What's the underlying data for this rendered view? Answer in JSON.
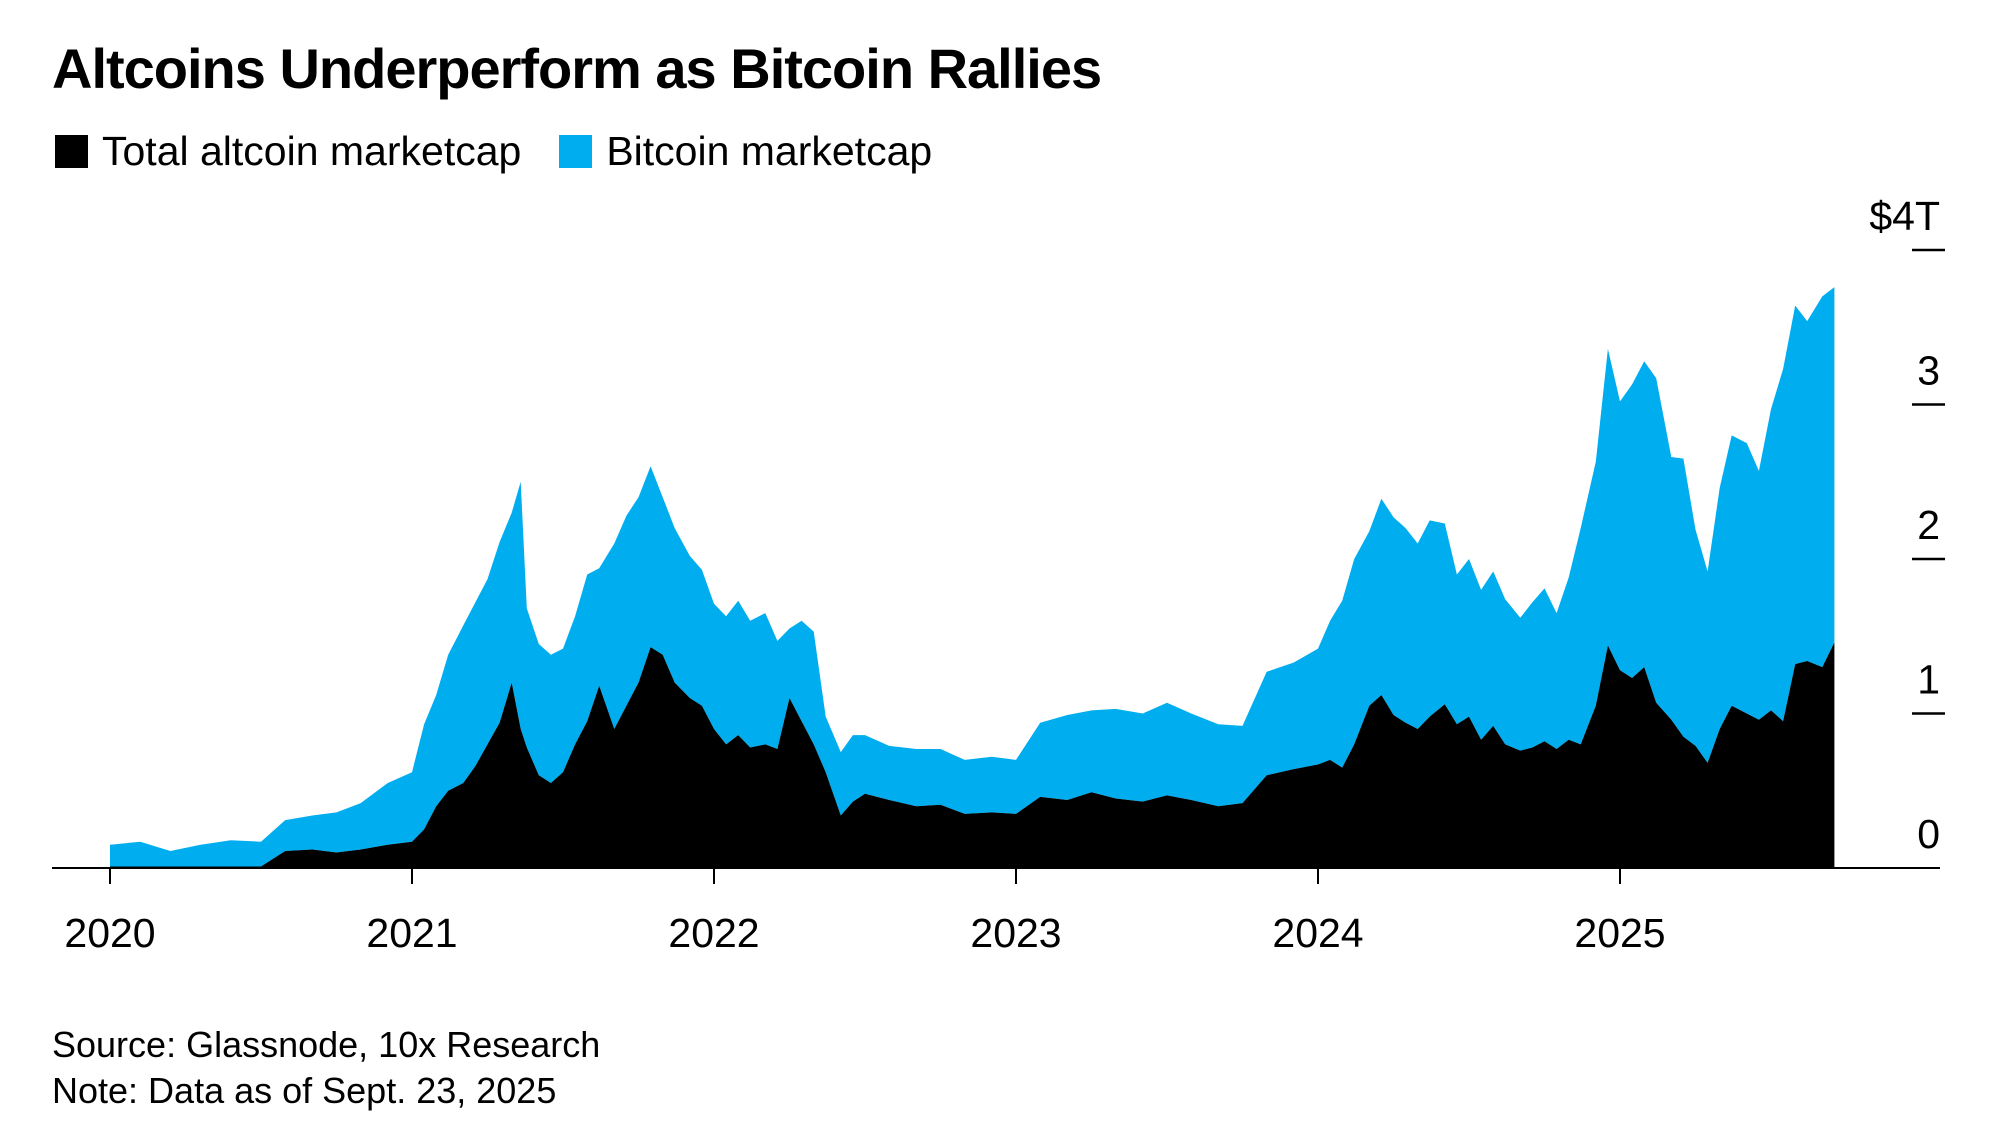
{
  "chart_data": {
    "type": "area",
    "title": "Altcoins Underperform as Bitcoin Rallies",
    "x_tick_labels": [
      "2020",
      "2021",
      "2022",
      "2023",
      "2024",
      "2025"
    ],
    "y_tick_labels": [
      "0",
      "1",
      "2",
      "3",
      "$4T"
    ],
    "y_ticks": [
      0,
      1,
      2,
      3,
      4
    ],
    "ylim": [
      0,
      4
    ],
    "xlim": [
      2019.95,
      2026.0
    ],
    "grid": false,
    "legend_position": "top-left",
    "stacked": true,
    "series": [
      {
        "name": "Total altcoin marketcap",
        "color": "#000000",
        "x": [
          2020.0,
          2020.1,
          2020.2,
          2020.3,
          2020.4,
          2020.5,
          2020.58,
          2020.67,
          2020.75,
          2020.83,
          2020.92,
          2021.0,
          2021.04,
          2021.08,
          2021.12,
          2021.17,
          2021.21,
          2021.25,
          2021.29,
          2021.33,
          2021.36,
          2021.38,
          2021.42,
          2021.46,
          2021.5,
          2021.54,
          2021.58,
          2021.62,
          2021.67,
          2021.71,
          2021.75,
          2021.79,
          2021.83,
          2021.87,
          2021.92,
          2021.96,
          2022.0,
          2022.04,
          2022.08,
          2022.12,
          2022.17,
          2022.21,
          2022.25,
          2022.29,
          2022.33,
          2022.37,
          2022.42,
          2022.46,
          2022.5,
          2022.58,
          2022.67,
          2022.75,
          2022.83,
          2022.92,
          2023.0,
          2023.08,
          2023.17,
          2023.25,
          2023.33,
          2023.42,
          2023.5,
          2023.58,
          2023.67,
          2023.75,
          2023.83,
          2023.92,
          2024.0,
          2024.04,
          2024.08,
          2024.12,
          2024.17,
          2024.21,
          2024.25,
          2024.29,
          2024.33,
          2024.37,
          2024.42,
          2024.46,
          2024.5,
          2024.54,
          2024.58,
          2024.62,
          2024.67,
          2024.71,
          2024.75,
          2024.79,
          2024.83,
          2024.87,
          2024.92,
          2024.96,
          2025.0,
          2025.04,
          2025.08,
          2025.12,
          2025.17,
          2025.21,
          2025.25,
          2025.29,
          2025.33,
          2025.37,
          2025.42,
          2025.46,
          2025.5,
          2025.54,
          2025.58,
          2025.62,
          2025.67,
          2025.71
        ],
        "values": [
          0.01,
          0.01,
          0.01,
          0.01,
          0.01,
          0.01,
          0.11,
          0.12,
          0.1,
          0.12,
          0.15,
          0.17,
          0.25,
          0.4,
          0.5,
          0.55,
          0.66,
          0.8,
          0.94,
          1.2,
          0.9,
          0.78,
          0.6,
          0.55,
          0.62,
          0.8,
          0.95,
          1.18,
          0.9,
          1.05,
          1.2,
          1.43,
          1.38,
          1.2,
          1.1,
          1.05,
          0.9,
          0.8,
          0.86,
          0.78,
          0.8,
          0.77,
          1.1,
          0.95,
          0.8,
          0.62,
          0.34,
          0.43,
          0.48,
          0.44,
          0.4,
          0.41,
          0.35,
          0.36,
          0.35,
          0.46,
          0.44,
          0.49,
          0.45,
          0.43,
          0.47,
          0.44,
          0.4,
          0.42,
          0.6,
          0.64,
          0.67,
          0.7,
          0.65,
          0.8,
          1.05,
          1.12,
          0.99,
          0.94,
          0.9,
          0.98,
          1.06,
          0.93,
          0.98,
          0.83,
          0.92,
          0.8,
          0.76,
          0.78,
          0.82,
          0.77,
          0.83,
          0.8,
          1.05,
          1.44,
          1.28,
          1.23,
          1.3,
          1.07,
          0.96,
          0.85,
          0.79,
          0.68,
          0.9,
          1.05,
          1.0,
          0.96,
          1.02,
          0.95,
          1.32,
          1.34,
          1.3,
          1.46
        ]
      },
      {
        "name": "Bitcoin marketcap",
        "color": "#00aeef",
        "x": [
          2020.0,
          2020.1,
          2020.2,
          2020.3,
          2020.4,
          2020.5,
          2020.58,
          2020.67,
          2020.75,
          2020.83,
          2020.92,
          2021.0,
          2021.04,
          2021.08,
          2021.12,
          2021.17,
          2021.21,
          2021.25,
          2021.29,
          2021.33,
          2021.36,
          2021.38,
          2021.42,
          2021.46,
          2021.5,
          2021.54,
          2021.58,
          2021.62,
          2021.67,
          2021.71,
          2021.75,
          2021.79,
          2021.83,
          2021.87,
          2021.92,
          2021.96,
          2022.0,
          2022.04,
          2022.08,
          2022.12,
          2022.17,
          2022.21,
          2022.25,
          2022.29,
          2022.33,
          2022.37,
          2022.42,
          2022.46,
          2022.5,
          2022.58,
          2022.67,
          2022.75,
          2022.83,
          2022.92,
          2023.0,
          2023.08,
          2023.17,
          2023.25,
          2023.33,
          2023.42,
          2023.5,
          2023.58,
          2023.67,
          2023.75,
          2023.83,
          2023.92,
          2024.0,
          2024.04,
          2024.08,
          2024.12,
          2024.17,
          2024.21,
          2024.25,
          2024.29,
          2024.33,
          2024.37,
          2024.42,
          2024.46,
          2024.5,
          2024.54,
          2024.58,
          2024.62,
          2024.67,
          2024.71,
          2024.75,
          2024.79,
          2024.83,
          2024.87,
          2024.92,
          2024.96,
          2025.0,
          2025.04,
          2025.08,
          2025.12,
          2025.17,
          2025.21,
          2025.25,
          2025.29,
          2025.33,
          2025.37,
          2025.42,
          2025.46,
          2025.5,
          2025.54,
          2025.58,
          2025.62,
          2025.67,
          2025.71
        ],
        "values": [
          0.14,
          0.16,
          0.1,
          0.14,
          0.17,
          0.16,
          0.2,
          0.22,
          0.26,
          0.3,
          0.4,
          0.45,
          0.68,
          0.72,
          0.88,
          1.02,
          1.06,
          1.07,
          1.17,
          1.1,
          1.6,
          0.9,
          0.85,
          0.83,
          0.8,
          0.83,
          0.95,
          0.76,
          1.2,
          1.23,
          1.2,
          1.17,
          1.02,
          1.0,
          0.92,
          0.88,
          0.81,
          0.83,
          0.87,
          0.82,
          0.85,
          0.7,
          0.45,
          0.65,
          0.73,
          0.36,
          0.41,
          0.43,
          0.38,
          0.35,
          0.37,
          0.36,
          0.35,
          0.36,
          0.35,
          0.48,
          0.55,
          0.53,
          0.58,
          0.57,
          0.6,
          0.56,
          0.53,
          0.5,
          0.67,
          0.69,
          0.75,
          0.9,
          1.08,
          1.2,
          1.13,
          1.27,
          1.28,
          1.26,
          1.2,
          1.27,
          1.17,
          0.97,
          1.02,
          0.97,
          1.0,
          0.94,
          0.86,
          0.94,
          0.99,
          0.88,
          1.05,
          1.4,
          1.58,
          1.92,
          1.74,
          1.9,
          1.98,
          2.1,
          1.7,
          1.8,
          1.4,
          1.24,
          1.56,
          1.75,
          1.75,
          1.61,
          1.95,
          2.28,
          2.32,
          2.2,
          2.4,
          2.3
        ]
      }
    ]
  },
  "source_note": "Source: Glassnode, 10x Research",
  "data_note": "Note: Data as of Sept. 23, 2025"
}
